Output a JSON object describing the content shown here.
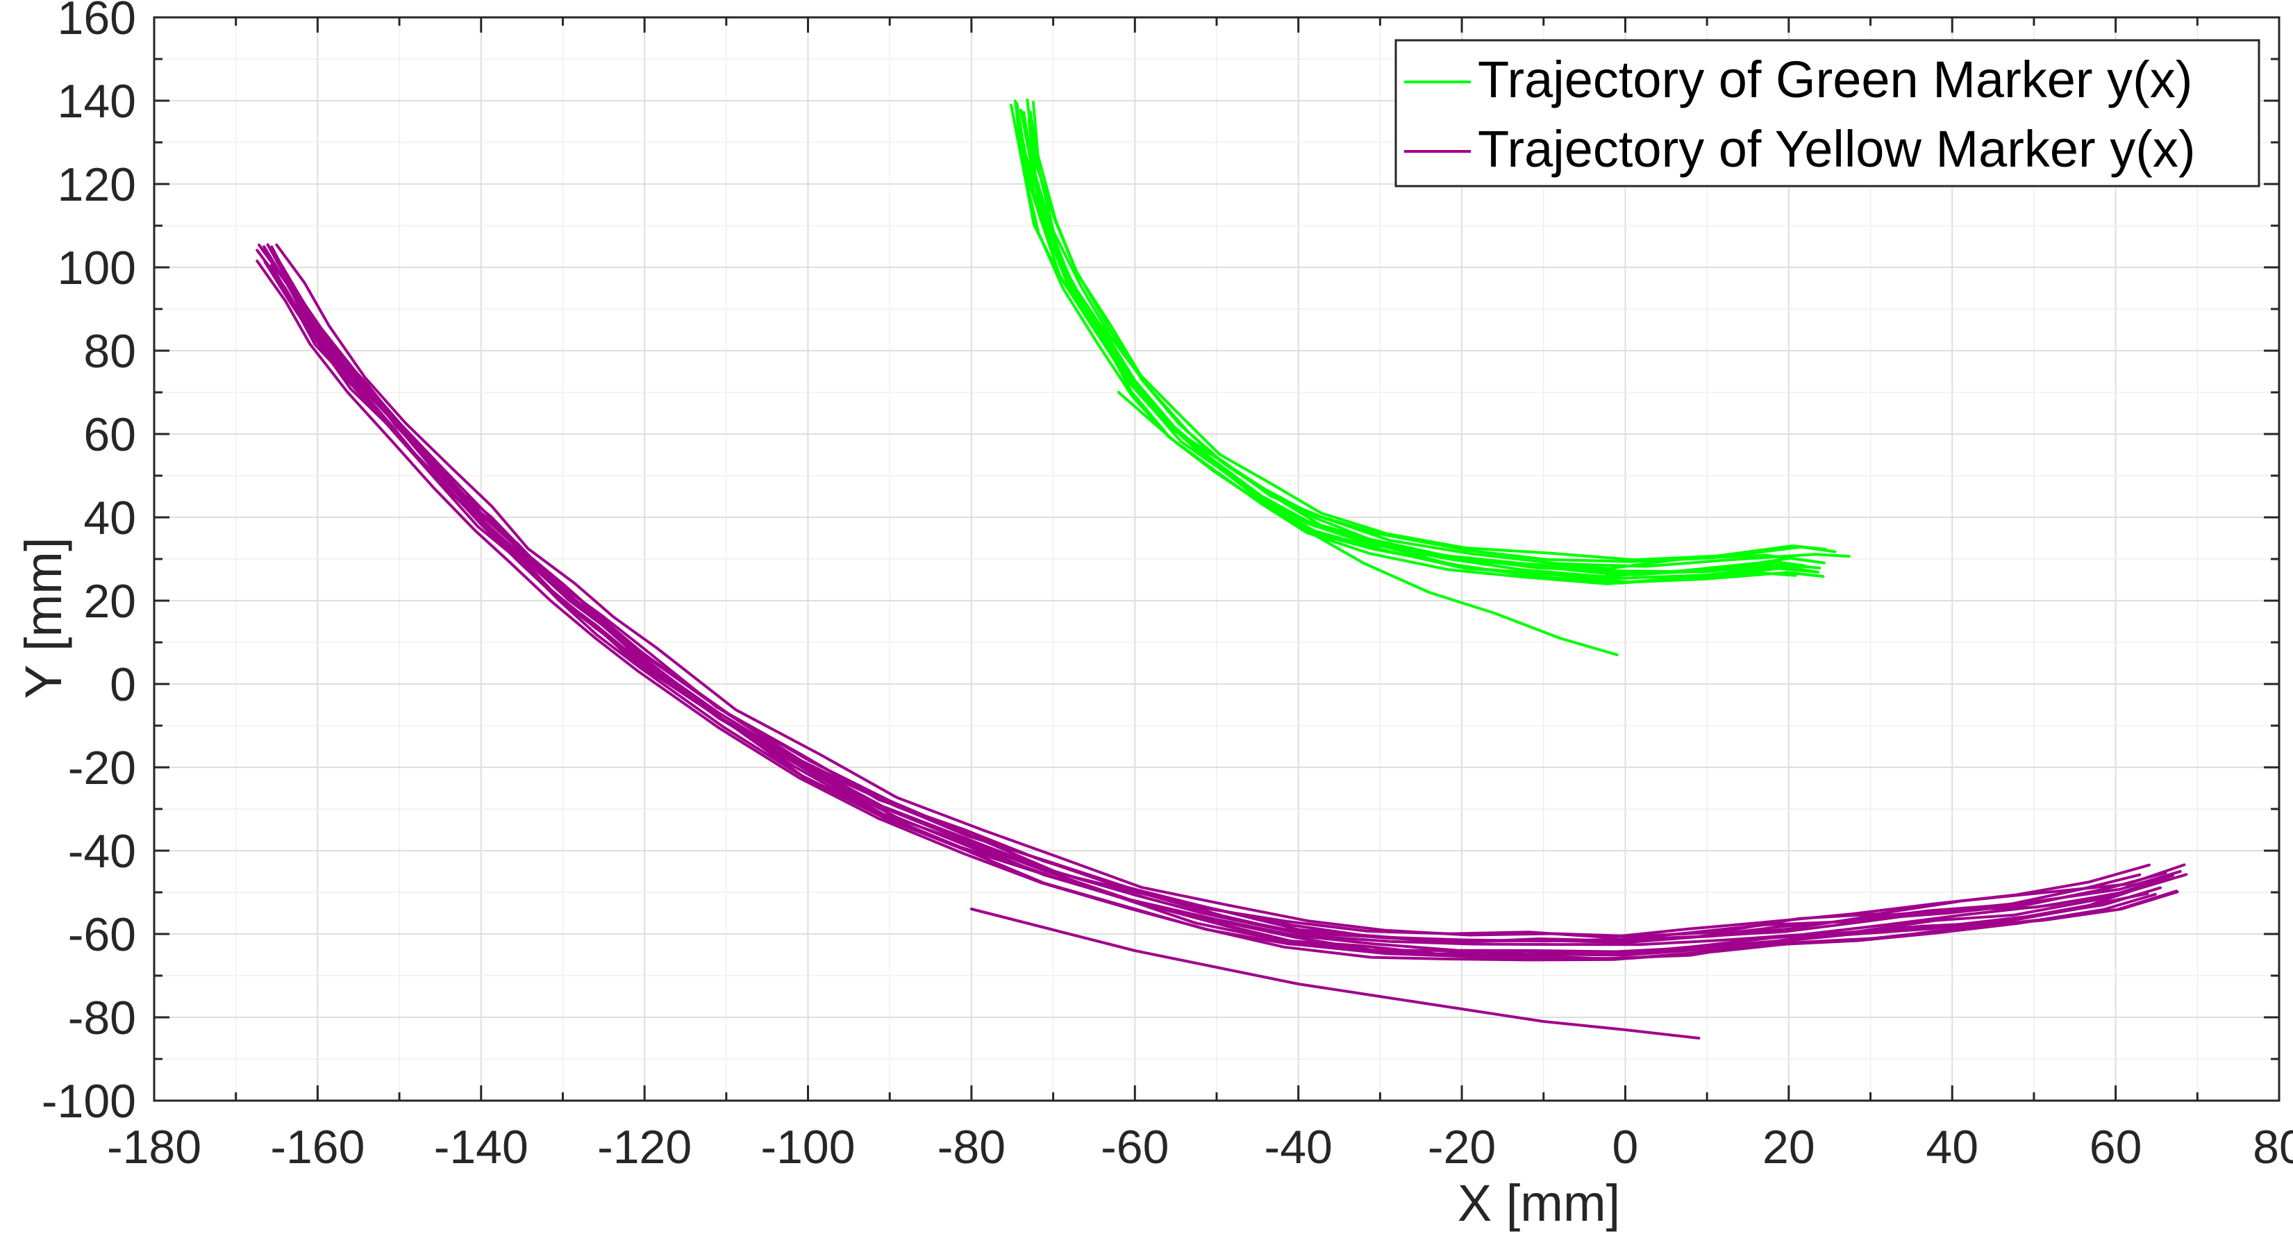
{
  "chart_data": {
    "type": "line",
    "title": "",
    "xlabel": "X [mm]",
    "ylabel": "Y [mm]",
    "xlim": [
      -180,
      80
    ],
    "ylim": [
      -100,
      160
    ],
    "xticks": [
      -180,
      -160,
      -140,
      -120,
      -100,
      -80,
      -60,
      -40,
      -20,
      0,
      20,
      40,
      60,
      80
    ],
    "yticks": [
      -100,
      -80,
      -60,
      -40,
      -20,
      0,
      20,
      40,
      60,
      80,
      100,
      120,
      140,
      160
    ],
    "xtick_labels": [
      "-180",
      "-160",
      "-140",
      "-120",
      "-100",
      "-80",
      "-60",
      "-40",
      "-20",
      "0",
      "20",
      "40",
      "60",
      "80"
    ],
    "ytick_labels": [
      "-100",
      "-80",
      "-60",
      "-40",
      "-20",
      "0",
      "20",
      "40",
      "60",
      "80",
      "100",
      "120",
      "140",
      "160"
    ],
    "grid": true,
    "minor_grid": true,
    "legend_position": "top-right",
    "series": [
      {
        "name": "Trajectory of Green Marker y(x)",
        "color": "#00ff00",
        "bundle_count": 12,
        "x": [
          -74,
          -73,
          -71,
          -68,
          -64,
          -60,
          -55,
          -50,
          -44,
          -38,
          -30,
          -20,
          -10,
          0,
          10,
          20,
          24
        ],
        "y": [
          138,
          125,
          110,
          97,
          84,
          72,
          61,
          53,
          45,
          39,
          34,
          30,
          28,
          27,
          28,
          30,
          29
        ],
        "outlier": {
          "x": [
            -62,
            -55,
            -48,
            -40,
            -32,
            -24,
            -16,
            -8,
            -1
          ],
          "y": [
            70,
            58,
            48,
            38,
            29,
            22,
            17,
            11,
            7
          ]
        }
      },
      {
        "name": "Trajectory of Yellow Marker y(x)",
        "color": "#a0008c",
        "bundle_count": 14,
        "x": [
          -166,
          -163,
          -160,
          -155,
          -150,
          -145,
          -140,
          -135,
          -130,
          -125,
          -120,
          -110,
          -100,
          -90,
          -80,
          -70,
          -60,
          -50,
          -40,
          -30,
          -20,
          -10,
          0,
          10,
          20,
          30,
          40,
          50,
          60,
          67
        ],
        "y": [
          103,
          94,
          84,
          72,
          61,
          50,
          40,
          31,
          22,
          14,
          6,
          -8,
          -20,
          -30,
          -38,
          -45,
          -51,
          -56,
          -60,
          -62,
          -63,
          -63,
          -63,
          -62,
          -60,
          -58,
          -56,
          -54,
          -51,
          -47
        ],
        "outlier": {
          "x": [
            -80,
            -70,
            -60,
            -50,
            -40,
            -30,
            -20,
            -10,
            0,
            9
          ],
          "y": [
            -54,
            -59,
            -64,
            -68,
            -72,
            -75,
            -78,
            -81,
            -83,
            -85
          ]
        }
      }
    ]
  }
}
